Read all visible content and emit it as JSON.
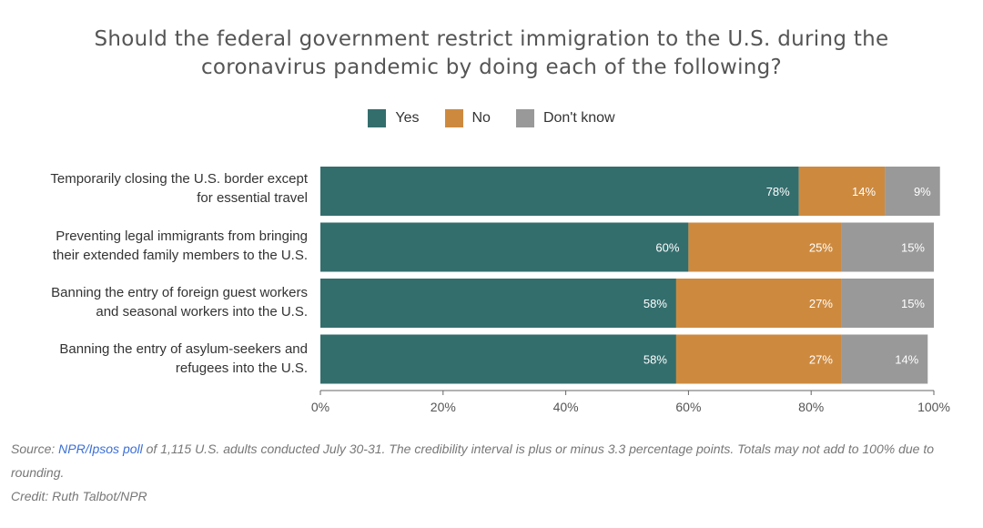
{
  "title_lines": [
    "Should the federal government restrict immigration to the U.S. during the",
    "coronavirus pandemic by doing each of the following?"
  ],
  "colors": {
    "yes": "#336e6d",
    "no": "#cd8a3f",
    "dont_know": "#999999"
  },
  "legend": {
    "yes": "Yes",
    "no": "No",
    "dont_know": "Don't know"
  },
  "category_labels": [
    [
      "Temporarily closing the U.S. border except",
      "for essential travel"
    ],
    [
      "Preventing legal immigrants from bringing",
      "their extended family members to the U.S."
    ],
    [
      "Banning the entry of foreign guest workers",
      "and seasonal workers into the U.S."
    ],
    [
      "Banning the entry of asylum-seekers and",
      "refugees into the U.S."
    ]
  ],
  "chart_data": {
    "type": "bar",
    "orientation": "horizontal",
    "stacked": true,
    "title": "Should the federal government restrict immigration to the U.S. during the coronavirus pandemic by doing each of the following?",
    "categories": [
      "Temporarily closing the U.S. border except for essential travel",
      "Preventing legal immigrants from bringing their extended family members to the U.S.",
      "Banning the entry of foreign guest workers and seasonal workers into the U.S.",
      "Banning the entry of asylum-seekers and refugees into the U.S."
    ],
    "series": [
      {
        "name": "Yes",
        "values": [
          78,
          60,
          58,
          58
        ],
        "labels": [
          "78%",
          "60%",
          "58%",
          "58%"
        ]
      },
      {
        "name": "No",
        "values": [
          14,
          25,
          27,
          27
        ],
        "labels": [
          "14%",
          "25%",
          "27%",
          "27%"
        ]
      },
      {
        "name": "Don't know",
        "values": [
          9,
          15,
          15,
          14
        ],
        "labels": [
          "9%",
          "15%",
          "15%",
          "14%"
        ]
      }
    ],
    "xlim": [
      0,
      100
    ],
    "xticks": [
      0,
      20,
      40,
      60,
      80,
      100
    ],
    "xtick_labels": [
      "0%",
      "20%",
      "40%",
      "60%",
      "80%",
      "100%"
    ],
    "legend_position": "top-center"
  },
  "footer": {
    "source_prefix": "Source: ",
    "source_link": "NPR/Ipsos poll",
    "source_rest": " of 1,115 U.S. adults conducted July 30-31. The credibility interval is plus or minus 3.3 percentage points. Totals may not add to 100% due to rounding.",
    "credit": "Credit: Ruth Talbot/NPR"
  }
}
